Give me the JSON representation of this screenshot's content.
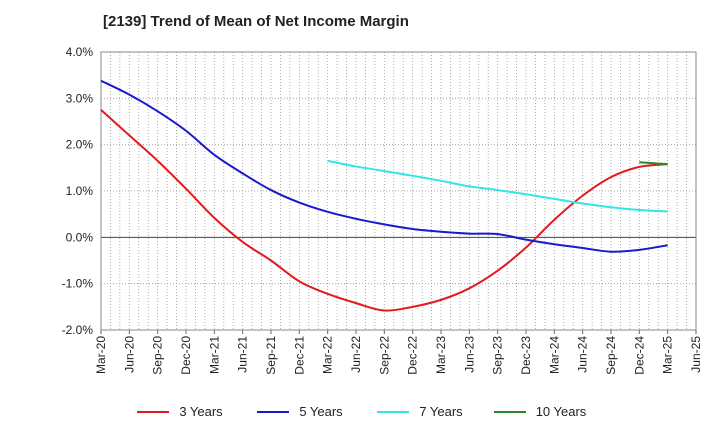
{
  "chart_data": {
    "type": "line",
    "title": "[2139]  Trend of Mean of Net Income Margin",
    "xlabel": "",
    "ylabel": "",
    "ylim": [
      -2.0,
      4.0
    ],
    "yticks": [
      "4.0%",
      "3.0%",
      "2.0%",
      "1.0%",
      "0.0%",
      "-1.0%",
      "-2.0%"
    ],
    "ytick_values": [
      4,
      3,
      2,
      1,
      0,
      -1,
      -2
    ],
    "x_tick_labels": [
      "Mar-20",
      "Jun-20",
      "Sep-20",
      "Dec-20",
      "Mar-21",
      "Jun-21",
      "Sep-21",
      "Dec-21",
      "Mar-22",
      "Jun-22",
      "Sep-22",
      "Dec-22",
      "Mar-23",
      "Jun-23",
      "Sep-23",
      "Dec-23",
      "Mar-24",
      "Jun-24",
      "Sep-24",
      "Dec-24",
      "Mar-25",
      "Jun-25"
    ],
    "grid": true,
    "legend_position": "bottom",
    "series": [
      {
        "name": "3 Years",
        "color": "#e31a1c",
        "x": [
          "Mar-20",
          "Jun-20",
          "Sep-20",
          "Dec-20",
          "Mar-21",
          "Jun-21",
          "Sep-21",
          "Dec-21",
          "Mar-22",
          "Jun-22",
          "Sep-22",
          "Dec-22",
          "Mar-23",
          "Jun-23",
          "Sep-23",
          "Dec-23",
          "Mar-24",
          "Jun-24",
          "Sep-24",
          "Dec-24",
          "Mar-25"
        ],
        "values": [
          2.75,
          2.2,
          1.65,
          1.05,
          0.42,
          -0.1,
          -0.5,
          -0.95,
          -1.22,
          -1.42,
          -1.58,
          -1.5,
          -1.35,
          -1.1,
          -0.72,
          -0.22,
          0.38,
          0.9,
          1.3,
          1.52,
          1.58
        ]
      },
      {
        "name": "5 Years",
        "color": "#1a1acc",
        "x": [
          "Mar-20",
          "Jun-20",
          "Sep-20",
          "Dec-20",
          "Mar-21",
          "Jun-21",
          "Sep-21",
          "Dec-21",
          "Mar-22",
          "Jun-22",
          "Sep-22",
          "Dec-22",
          "Mar-23",
          "Jun-23",
          "Sep-23",
          "Dec-23",
          "Mar-24",
          "Jun-24",
          "Sep-24",
          "Dec-24",
          "Mar-25"
        ],
        "values": [
          3.38,
          3.08,
          2.72,
          2.3,
          1.78,
          1.38,
          1.02,
          0.75,
          0.55,
          0.4,
          0.28,
          0.18,
          0.12,
          0.08,
          0.07,
          -0.05,
          -0.15,
          -0.23,
          -0.31,
          -0.27,
          -0.17
        ]
      },
      {
        "name": "7 Years",
        "color": "#33e5e5",
        "x": [
          "Mar-22",
          "Jun-22",
          "Sep-22",
          "Dec-22",
          "Mar-23",
          "Jun-23",
          "Sep-23",
          "Dec-23",
          "Mar-24",
          "Jun-24",
          "Sep-24",
          "Dec-24",
          "Mar-25"
        ],
        "values": [
          1.65,
          1.53,
          1.43,
          1.33,
          1.22,
          1.1,
          1.02,
          0.93,
          0.83,
          0.73,
          0.65,
          0.59,
          0.56
        ]
      },
      {
        "name": "10 Years",
        "color": "#2a8a2a",
        "x": [
          "Dec-24",
          "Mar-25"
        ],
        "values": [
          1.62,
          1.58
        ]
      }
    ]
  }
}
